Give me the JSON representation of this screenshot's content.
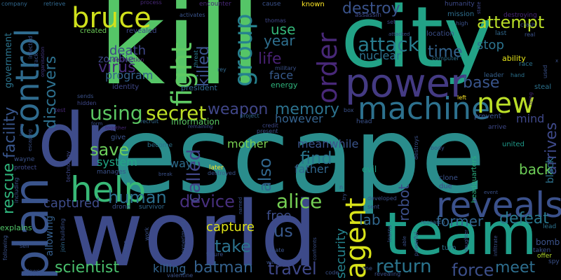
{
  "words": [
    {
      "text": "escape",
      "color": "#2a8d8c"
    },
    {
      "text": "kill",
      "color": "#55c567"
    },
    {
      "text": "world",
      "color": "#3d4a89"
    },
    {
      "text": "city",
      "color": "#22a286"
    },
    {
      "text": "team",
      "color": "#1f9e89"
    },
    {
      "text": "dr",
      "color": "#3e4c8a"
    },
    {
      "text": "power",
      "color": "#443a83"
    },
    {
      "text": "plan",
      "color": "#3a548c"
    },
    {
      "text": "control",
      "color": "#2f6b8e"
    },
    {
      "text": "reveals",
      "color": "#3b518b"
    },
    {
      "text": "help",
      "color": "#38b977"
    },
    {
      "text": "machine",
      "color": "#2d718e"
    },
    {
      "text": "agent",
      "color": "#d8e219"
    },
    {
      "text": "new",
      "color": "#bade28"
    },
    {
      "text": "bruce",
      "color": "#d0e11c"
    },
    {
      "text": "fight",
      "color": "#5ec962"
    },
    {
      "text": "group",
      "color": "#26818e"
    },
    {
      "text": "order",
      "color": "#482878"
    },
    {
      "text": "using",
      "color": "#5cc863"
    },
    {
      "text": "secret",
      "color": "#bddf26"
    },
    {
      "text": "weapon",
      "color": "#404688"
    },
    {
      "text": "memory",
      "color": "#2c728e"
    },
    {
      "text": "attack",
      "color": "#287c8e"
    },
    {
      "text": "alice",
      "color": "#75d054"
    },
    {
      "text": "return",
      "color": "#2b758e"
    },
    {
      "text": "force",
      "color": "#3c4f8a"
    },
    {
      "text": "meet",
      "color": "#2e6e8e"
    },
    {
      "text": "travel",
      "color": "#3f4889"
    },
    {
      "text": "batman",
      "color": "#34618d"
    },
    {
      "text": "scientist",
      "color": "#4ac16d"
    },
    {
      "text": "take",
      "color": "#2c738e"
    },
    {
      "text": "device",
      "color": "#472f7d"
    },
    {
      "text": "human",
      "color": "#2c718e"
    },
    {
      "text": "save",
      "color": "#6ccd5a"
    },
    {
      "text": "called",
      "color": "#404588"
    },
    {
      "text": "also",
      "color": "#31678e"
    },
    {
      "text": "find",
      "color": "#2a768e"
    },
    {
      "text": "rescue",
      "color": "#2fb47c"
    },
    {
      "text": "facility",
      "color": "#39568c"
    },
    {
      "text": "discovers",
      "color": "#2d708e"
    },
    {
      "text": "virus",
      "color": "#472d7b"
    },
    {
      "text": "killed",
      "color": "#3b528b"
    },
    {
      "text": "life",
      "color": "#482173"
    },
    {
      "text": "destroy",
      "color": "#3a538b"
    },
    {
      "text": "attempt",
      "color": "#bade28"
    },
    {
      "text": "time",
      "color": "#33638d"
    },
    {
      "text": "base",
      "color": "#39558c"
    },
    {
      "text": "stop",
      "color": "#2c738e"
    },
    {
      "text": "arrives",
      "color": "#3e4989"
    },
    {
      "text": "defeat",
      "color": "#2a788e"
    },
    {
      "text": "former",
      "color": "#32658e"
    },
    {
      "text": "back",
      "color": "#6ece58"
    },
    {
      "text": "robot",
      "color": "#3c4f8a"
    },
    {
      "text": "security",
      "color": "#25848e"
    },
    {
      "text": "lab",
      "color": "#31688e"
    },
    {
      "text": "us",
      "color": "#38588c"
    },
    {
      "text": "free",
      "color": "#3d4e8a"
    },
    {
      "text": "captured",
      "color": "#3e4c8a"
    },
    {
      "text": "capture",
      "color": "#dfe318"
    },
    {
      "text": "year",
      "color": "#2e6f8e"
    },
    {
      "text": "use",
      "color": "#34b679"
    },
    {
      "text": "death",
      "color": "#3f4788"
    },
    {
      "text": "program",
      "color": "#33628d"
    },
    {
      "text": "system",
      "color": "#21a685"
    },
    {
      "text": "father",
      "color": "#31678e"
    },
    {
      "text": "mother",
      "color": "#7ad151"
    },
    {
      "text": "meanwhile",
      "color": "#3a548c"
    },
    {
      "text": "however",
      "color": "#34618d"
    },
    {
      "text": "nuclear",
      "color": "#2d718e"
    },
    {
      "text": "face",
      "color": "#375a8c"
    },
    {
      "text": "way",
      "color": "#2e6d8e"
    },
    {
      "text": "zombie",
      "color": "#3e4a89"
    },
    {
      "text": "mind",
      "color": "#3f4889"
    },
    {
      "text": "killing",
      "color": "#33638d"
    },
    {
      "text": "evil",
      "color": "#20a386"
    },
    {
      "text": "government",
      "color": "#2b748e"
    },
    {
      "text": "allowing",
      "color": "#355f8d"
    },
    {
      "text": "ability",
      "color": "#e5e419"
    },
    {
      "text": "bomb",
      "color": "#3b528b"
    },
    {
      "text": "black",
      "color": "#2c728e"
    },
    {
      "text": "explains",
      "color": "#52c569"
    },
    {
      "text": "information",
      "color": "#5ac864"
    },
    {
      "text": "energy",
      "color": "#2fb47c"
    },
    {
      "text": "created",
      "color": "#6ece58"
    },
    {
      "text": "revealed",
      "color": "#3e4a89"
    },
    {
      "text": "identity",
      "color": "#3f4788"
    },
    {
      "text": "president",
      "color": "#31688e"
    },
    {
      "text": "destroying",
      "color": "#482878"
    },
    {
      "text": "mission",
      "color": "#2e6e8e"
    },
    {
      "text": "location",
      "color": "#3c508b"
    },
    {
      "text": "race",
      "color": "#2c738e"
    },
    {
      "text": "leader",
      "color": "#35608d"
    },
    {
      "text": "steal",
      "color": "#2c728e"
    },
    {
      "text": "prevent",
      "color": "#3b528b"
    },
    {
      "text": "arrive",
      "color": "#3e4989"
    },
    {
      "text": "united",
      "color": "#1f9a8a"
    },
    {
      "text": "headquarters",
      "color": "#29af7f"
    },
    {
      "text": "clone",
      "color": "#3b528b"
    },
    {
      "text": "due",
      "color": "#3f4889"
    },
    {
      "text": "later",
      "color": "#fde725"
    },
    {
      "text": "destroyed",
      "color": "#3a548c"
    },
    {
      "text": "research",
      "color": "#33638d"
    },
    {
      "text": "turn",
      "color": "#2c728e"
    },
    {
      "text": "offer",
      "color": "#b5de2b"
    },
    {
      "text": "taken",
      "color": "#3b528b"
    },
    {
      "text": "lead",
      "color": "#2c728e"
    },
    {
      "text": "spy",
      "color": "#3b528b"
    },
    {
      "text": "known",
      "color": "#fde725"
    },
    {
      "text": "humanity",
      "color": "#3e4a89"
    },
    {
      "text": "encounter",
      "color": "#482878"
    },
    {
      "text": "cause",
      "color": "#3b528b"
    },
    {
      "text": "assassin",
      "color": "#3e4989"
    },
    {
      "text": "thomas",
      "color": "#3f4788"
    },
    {
      "text": "process",
      "color": "#482878"
    },
    {
      "text": "activates",
      "color": "#3a548c"
    },
    {
      "text": "company",
      "color": "#31688e"
    },
    {
      "text": "retrieve",
      "color": "#31688e"
    },
    {
      "text": "infected",
      "color": "#3b528b"
    },
    {
      "text": "track",
      "color": "#3a548c"
    },
    {
      "text": "organisation",
      "color": "#443983"
    },
    {
      "text": "destruction",
      "color": "#482173"
    },
    {
      "text": "threat",
      "color": "#2a788e"
    },
    {
      "text": "military",
      "color": "#3b528b"
    },
    {
      "text": "rey",
      "color": "#31688e"
    },
    {
      "text": "sends",
      "color": "#3b528b"
    },
    {
      "text": "hidden",
      "color": "#3f4889"
    },
    {
      "text": "test",
      "color": "#482878"
    },
    {
      "text": "recruit",
      "color": "#31688e"
    },
    {
      "text": "remaining",
      "color": "#3b528b"
    },
    {
      "text": "project",
      "color": "#31688e"
    },
    {
      "text": "credit",
      "color": "#3e4989"
    },
    {
      "text": "present",
      "color": "#3b528b"
    },
    {
      "text": "box",
      "color": "#3b528b"
    },
    {
      "text": "head",
      "color": "#3b528b"
    },
    {
      "text": "set",
      "color": "#3f4889"
    },
    {
      "text": "attacked",
      "color": "#3b528b"
    },
    {
      "text": "computer",
      "color": "#2c728e"
    },
    {
      "text": "high",
      "color": "#3b528b"
    },
    {
      "text": "state",
      "color": "#3f4788"
    },
    {
      "text": "crash",
      "color": "#3b528b"
    },
    {
      "text": "last",
      "color": "#31688e"
    },
    {
      "text": "real",
      "color": "#3b528b"
    },
    {
      "text": "hand",
      "color": "#2c728e"
    },
    {
      "text": "used",
      "color": "#3b528b"
    },
    {
      "text": "bring",
      "color": "#482878"
    },
    {
      "text": "left",
      "color": "#fde725"
    },
    {
      "text": "form",
      "color": "#3b528b"
    },
    {
      "text": "together",
      "color": "#482878"
    },
    {
      "text": "give",
      "color": "#3b528b"
    },
    {
      "text": "become",
      "color": "#2c728e"
    },
    {
      "text": "break",
      "color": "#3b528b"
    },
    {
      "text": "manages",
      "color": "#3b528b"
    },
    {
      "text": "drone",
      "color": "#3b528b"
    },
    {
      "text": "survivor",
      "color": "#31688e"
    },
    {
      "text": "wayne",
      "color": "#3b528b"
    },
    {
      "text": "protect",
      "color": "#3e4989"
    },
    {
      "text": "technology",
      "color": "#3f4889"
    },
    {
      "text": "learn",
      "color": "#3b528b"
    },
    {
      "text": "escaping",
      "color": "#3b528b"
    },
    {
      "text": "including",
      "color": "#3b528b"
    },
    {
      "text": "building",
      "color": "#3b528b"
    },
    {
      "text": "join",
      "color": "#31688e"
    },
    {
      "text": "following",
      "color": "#3b528b"
    },
    {
      "text": "allows",
      "color": "#3b528b"
    },
    {
      "text": "self",
      "color": "#3b528b"
    },
    {
      "text": "discover",
      "color": "#3b528b"
    },
    {
      "text": "hostage",
      "color": "#3b528b"
    },
    {
      "text": "valentine",
      "color": "#3b528b"
    },
    {
      "text": "experiment",
      "color": "#3b528b"
    },
    {
      "text": "named",
      "color": "#3b528b"
    },
    {
      "text": "within",
      "color": "#3b528b"
    },
    {
      "text": "create",
      "color": "#3b528b"
    },
    {
      "text": "confronts",
      "color": "#3b528b"
    },
    {
      "text": "code",
      "color": "#3b528b"
    },
    {
      "text": "one",
      "color": "#3b528b"
    },
    {
      "text": "revealing",
      "color": "#3b528b"
    },
    {
      "text": "able",
      "color": "#3b528b"
    },
    {
      "text": "powerful",
      "color": "#3b528b"
    },
    {
      "text": "learns",
      "color": "#3b528b"
    },
    {
      "text": "sent",
      "color": "#3b528b"
    },
    {
      "text": "developed",
      "color": "#3b528b"
    },
    {
      "text": "destroys",
      "color": "#3b528b"
    },
    {
      "text": "body",
      "color": "#3b528b"
    },
    {
      "text": "event",
      "color": "#3b528b"
    },
    {
      "text": "daughter",
      "color": "#3b528b"
    },
    {
      "text": "infiltrate",
      "color": "#3b528b"
    },
    {
      "text": "future",
      "color": "#3b528b"
    },
    {
      "text": "work",
      "color": "#3b528b"
    },
    {
      "text": "try",
      "color": "#3b528b"
    },
    {
      "text": "n",
      "color": "#3b528b"
    },
    {
      "text": "x",
      "color": "#3b528b"
    }
  ]
}
